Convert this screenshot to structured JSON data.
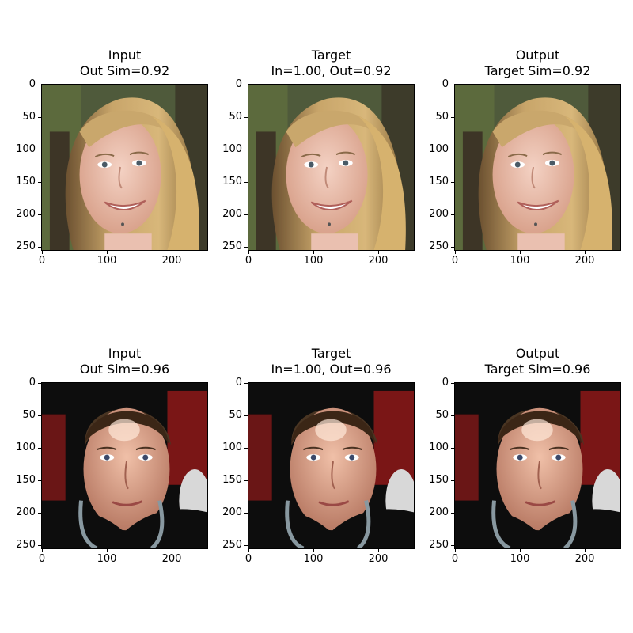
{
  "figure": {
    "rows": [
      {
        "panels": [
          {
            "title_line1": "Input",
            "title_line2": "Out Sim=0.92",
            "image": "blonde-woman-face-photo"
          },
          {
            "title_line1": "Target",
            "title_line2": "In=1.00, Out=0.92",
            "image": "blonde-woman-face-photo"
          },
          {
            "title_line1": "Output",
            "title_line2": "Target Sim=0.92",
            "image": "blonde-woman-face-photo-smoothed"
          }
        ]
      },
      {
        "panels": [
          {
            "title_line1": "Input",
            "title_line2": "Out Sim=0.96",
            "image": "man-face-photo"
          },
          {
            "title_line1": "Target",
            "title_line2": "In=1.00, Out=0.96",
            "image": "man-face-photo"
          },
          {
            "title_line1": "Output",
            "title_line2": "Target Sim=0.96",
            "image": "man-face-photo-smoothed"
          }
        ]
      }
    ],
    "y_ticks": [
      "0",
      "50",
      "100",
      "150",
      "200",
      "250"
    ],
    "x_ticks": [
      "0",
      "100",
      "200"
    ],
    "axis_range": {
      "x": [
        0,
        256
      ],
      "y": [
        0,
        256
      ]
    }
  }
}
